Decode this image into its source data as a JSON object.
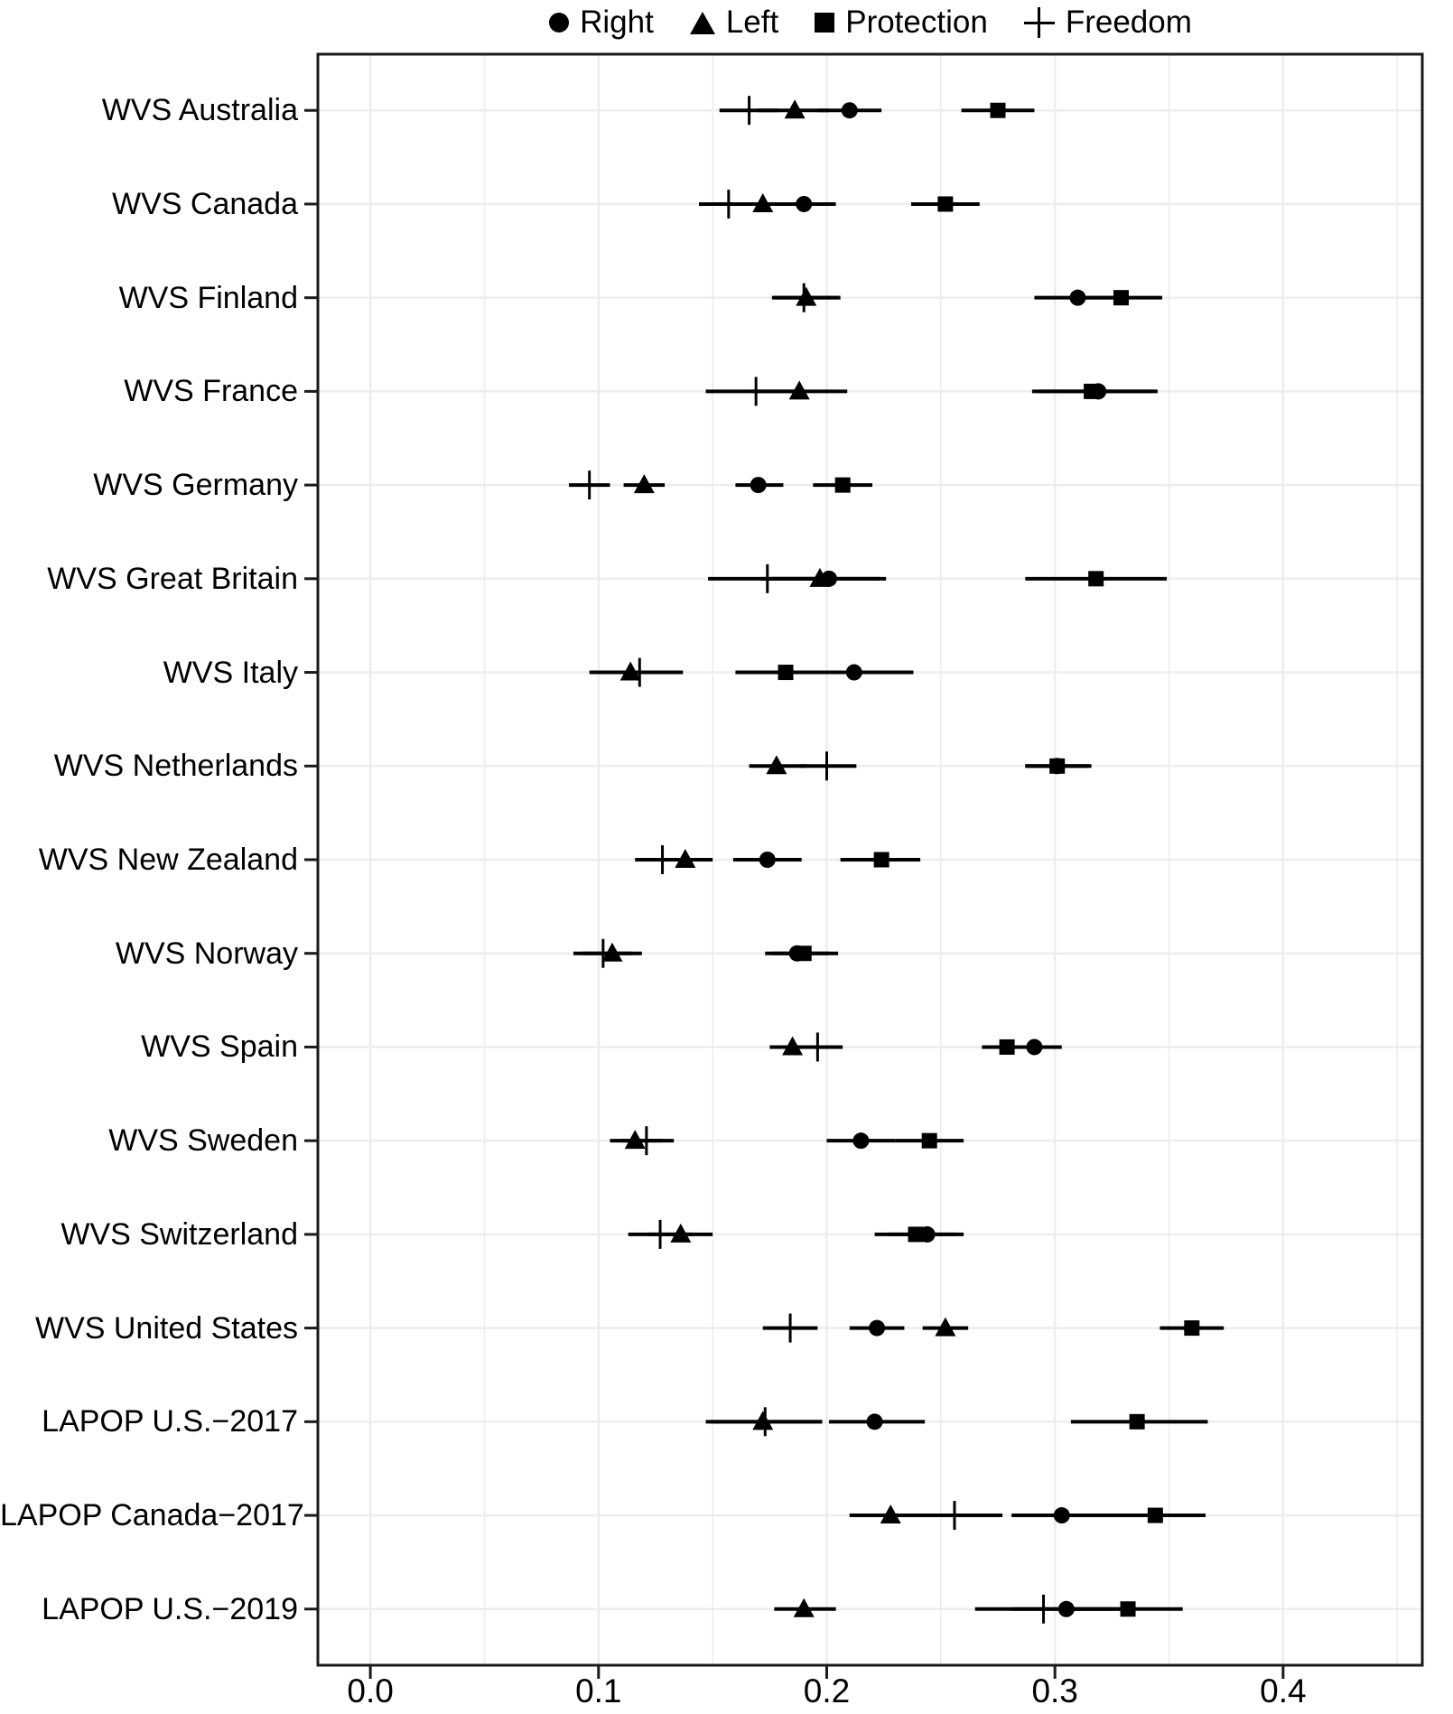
{
  "legend": {
    "items": [
      {
        "label": "Right",
        "symbol": "circle"
      },
      {
        "label": "Left",
        "symbol": "triangle"
      },
      {
        "label": "Protection",
        "symbol": "square"
      },
      {
        "label": "Freedom",
        "symbol": "plus"
      }
    ]
  },
  "chart_data": {
    "type": "scatter",
    "subtype": "dot-and-whisker horizontal forest plot",
    "title": "",
    "xlabel": "",
    "ylabel": "",
    "xlim": [
      -0.023,
      0.461
    ],
    "x_tick_values": [
      0.0,
      0.1,
      0.2,
      0.3,
      0.4
    ],
    "x_tick_labels": [
      "0.0",
      "0.1",
      "0.2",
      "0.3",
      "0.4"
    ],
    "grid": {
      "vertical_minor_step": 0.05,
      "horizontal": "one line per category",
      "color": "#ededed"
    },
    "legend_position": "top-center",
    "marker_color": "#000000",
    "series_symbols": {
      "Right": "circle",
      "Left": "triangle",
      "Protection": "square",
      "Freedom": "plus"
    },
    "rows": [
      {
        "label": "WVS Australia",
        "points": [
          {
            "series": "Freedom",
            "value": 0.166,
            "lo": 0.153,
            "hi": 0.179
          },
          {
            "series": "Left",
            "value": 0.186,
            "lo": 0.17,
            "hi": 0.201
          },
          {
            "series": "Right",
            "value": 0.21,
            "lo": 0.196,
            "hi": 0.224
          },
          {
            "series": "Protection",
            "value": 0.275,
            "lo": 0.259,
            "hi": 0.291
          }
        ]
      },
      {
        "label": "WVS Canada",
        "points": [
          {
            "series": "Freedom",
            "value": 0.157,
            "lo": 0.144,
            "hi": 0.171
          },
          {
            "series": "Left",
            "value": 0.172,
            "lo": 0.158,
            "hi": 0.186
          },
          {
            "series": "Right",
            "value": 0.19,
            "lo": 0.176,
            "hi": 0.204
          },
          {
            "series": "Protection",
            "value": 0.252,
            "lo": 0.237,
            "hi": 0.267
          }
        ]
      },
      {
        "label": "WVS Finland",
        "points": [
          {
            "series": "Freedom",
            "value": 0.19,
            "lo": 0.176,
            "hi": 0.205
          },
          {
            "series": "Left",
            "value": 0.191,
            "lo": 0.177,
            "hi": 0.206
          },
          {
            "series": "Right",
            "value": 0.31,
            "lo": 0.291,
            "hi": 0.329
          },
          {
            "series": "Protection",
            "value": 0.329,
            "lo": 0.31,
            "hi": 0.347
          }
        ]
      },
      {
        "label": "WVS France",
        "points": [
          {
            "series": "Freedom",
            "value": 0.169,
            "lo": 0.147,
            "hi": 0.19
          },
          {
            "series": "Left",
            "value": 0.188,
            "lo": 0.167,
            "hi": 0.209
          },
          {
            "series": "Protection",
            "value": 0.316,
            "lo": 0.29,
            "hi": 0.343
          },
          {
            "series": "Right",
            "value": 0.319,
            "lo": 0.293,
            "hi": 0.345
          }
        ]
      },
      {
        "label": "WVS Germany",
        "points": [
          {
            "series": "Freedom",
            "value": 0.096,
            "lo": 0.087,
            "hi": 0.105
          },
          {
            "series": "Left",
            "value": 0.12,
            "lo": 0.111,
            "hi": 0.129
          },
          {
            "series": "Right",
            "value": 0.17,
            "lo": 0.16,
            "hi": 0.181
          },
          {
            "series": "Protection",
            "value": 0.207,
            "lo": 0.194,
            "hi": 0.22
          }
        ]
      },
      {
        "label": "WVS Great Britain",
        "points": [
          {
            "series": "Freedom",
            "value": 0.174,
            "lo": 0.148,
            "hi": 0.2
          },
          {
            "series": "Left",
            "value": 0.197,
            "lo": 0.171,
            "hi": 0.223
          },
          {
            "series": "Right",
            "value": 0.201,
            "lo": 0.176,
            "hi": 0.226
          },
          {
            "series": "Protection",
            "value": 0.318,
            "lo": 0.287,
            "hi": 0.349
          }
        ]
      },
      {
        "label": "WVS Italy",
        "points": [
          {
            "series": "Left",
            "value": 0.114,
            "lo": 0.096,
            "hi": 0.132
          },
          {
            "series": "Freedom",
            "value": 0.118,
            "lo": 0.1,
            "hi": 0.137
          },
          {
            "series": "Protection",
            "value": 0.182,
            "lo": 0.16,
            "hi": 0.204
          },
          {
            "series": "Right",
            "value": 0.212,
            "lo": 0.189,
            "hi": 0.238
          }
        ]
      },
      {
        "label": "WVS Netherlands",
        "points": [
          {
            "series": "Left",
            "value": 0.178,
            "lo": 0.166,
            "hi": 0.191
          },
          {
            "series": "Freedom",
            "value": 0.2,
            "lo": 0.188,
            "hi": 0.213
          },
          {
            "series": "Right",
            "value": 0.301,
            "lo": 0.287,
            "hi": 0.315
          },
          {
            "series": "Protection",
            "value": 0.301,
            "lo": 0.287,
            "hi": 0.316
          }
        ]
      },
      {
        "label": "WVS New Zealand",
        "points": [
          {
            "series": "Freedom",
            "value": 0.128,
            "lo": 0.116,
            "hi": 0.14
          },
          {
            "series": "Left",
            "value": 0.138,
            "lo": 0.126,
            "hi": 0.15
          },
          {
            "series": "Right",
            "value": 0.174,
            "lo": 0.159,
            "hi": 0.189
          },
          {
            "series": "Protection",
            "value": 0.224,
            "lo": 0.206,
            "hi": 0.241
          }
        ]
      },
      {
        "label": "WVS Norway",
        "points": [
          {
            "series": "Freedom",
            "value": 0.102,
            "lo": 0.089,
            "hi": 0.115
          },
          {
            "series": "Left",
            "value": 0.106,
            "lo": 0.093,
            "hi": 0.119
          },
          {
            "series": "Right",
            "value": 0.187,
            "lo": 0.173,
            "hi": 0.201
          },
          {
            "series": "Protection",
            "value": 0.19,
            "lo": 0.176,
            "hi": 0.205
          }
        ]
      },
      {
        "label": "WVS Spain",
        "points": [
          {
            "series": "Left",
            "value": 0.185,
            "lo": 0.175,
            "hi": 0.196
          },
          {
            "series": "Freedom",
            "value": 0.196,
            "lo": 0.185,
            "hi": 0.207
          },
          {
            "series": "Protection",
            "value": 0.279,
            "lo": 0.268,
            "hi": 0.291
          },
          {
            "series": "Right",
            "value": 0.291,
            "lo": 0.279,
            "hi": 0.303
          }
        ]
      },
      {
        "label": "WVS Sweden",
        "points": [
          {
            "series": "Left",
            "value": 0.116,
            "lo": 0.105,
            "hi": 0.128
          },
          {
            "series": "Freedom",
            "value": 0.121,
            "lo": 0.11,
            "hi": 0.133
          },
          {
            "series": "Right",
            "value": 0.215,
            "lo": 0.2,
            "hi": 0.23
          },
          {
            "series": "Protection",
            "value": 0.245,
            "lo": 0.23,
            "hi": 0.26
          }
        ]
      },
      {
        "label": "WVS Switzerland",
        "points": [
          {
            "series": "Freedom",
            "value": 0.127,
            "lo": 0.113,
            "hi": 0.141
          },
          {
            "series": "Left",
            "value": 0.136,
            "lo": 0.122,
            "hi": 0.15
          },
          {
            "series": "Protection",
            "value": 0.239,
            "lo": 0.221,
            "hi": 0.257
          },
          {
            "series": "Right",
            "value": 0.244,
            "lo": 0.227,
            "hi": 0.26
          }
        ]
      },
      {
        "label": "WVS United States",
        "points": [
          {
            "series": "Freedom",
            "value": 0.184,
            "lo": 0.172,
            "hi": 0.196
          },
          {
            "series": "Right",
            "value": 0.222,
            "lo": 0.21,
            "hi": 0.234
          },
          {
            "series": "Left",
            "value": 0.252,
            "lo": 0.242,
            "hi": 0.262
          },
          {
            "series": "Protection",
            "value": 0.36,
            "lo": 0.346,
            "hi": 0.374
          }
        ]
      },
      {
        "label": "LAPOP U.S.−2017",
        "points": [
          {
            "series": "Left",
            "value": 0.172,
            "lo": 0.147,
            "hi": 0.198
          },
          {
            "series": "Freedom",
            "value": 0.173,
            "lo": 0.149,
            "hi": 0.198
          },
          {
            "series": "Right",
            "value": 0.221,
            "lo": 0.201,
            "hi": 0.243
          },
          {
            "series": "Protection",
            "value": 0.336,
            "lo": 0.307,
            "hi": 0.367
          }
        ]
      },
      {
        "label": "LAPOP Canada−2017",
        "points": [
          {
            "series": "Left",
            "value": 0.228,
            "lo": 0.21,
            "hi": 0.247
          },
          {
            "series": "Freedom",
            "value": 0.256,
            "lo": 0.232,
            "hi": 0.277
          },
          {
            "series": "Right",
            "value": 0.303,
            "lo": 0.281,
            "hi": 0.327
          },
          {
            "series": "Protection",
            "value": 0.344,
            "lo": 0.322,
            "hi": 0.366
          }
        ]
      },
      {
        "label": "LAPOP U.S.−2019",
        "points": [
          {
            "series": "Left",
            "value": 0.19,
            "lo": 0.177,
            "hi": 0.204
          },
          {
            "series": "Freedom",
            "value": 0.295,
            "lo": 0.265,
            "hi": 0.325
          },
          {
            "series": "Right",
            "value": 0.305,
            "lo": 0.281,
            "hi": 0.33
          },
          {
            "series": "Protection",
            "value": 0.332,
            "lo": 0.306,
            "hi": 0.356
          }
        ]
      }
    ]
  }
}
